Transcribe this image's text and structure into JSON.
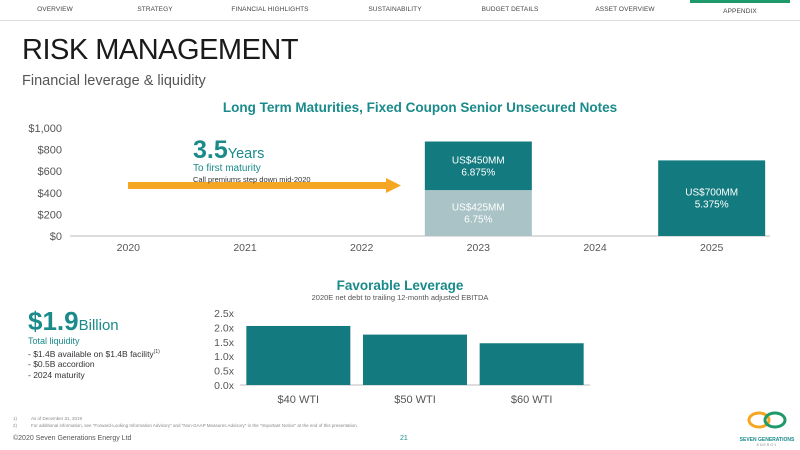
{
  "nav": {
    "items": [
      {
        "label": "OVERVIEW",
        "active": false
      },
      {
        "label": "STRATEGY",
        "active": false
      },
      {
        "label": "FINANCIAL HIGHLIGHTS",
        "active": false
      },
      {
        "label": "SUSTAINABILITY",
        "active": false
      },
      {
        "label": "BUDGET DETAILS",
        "active": false
      },
      {
        "label": "ASSET OVERVIEW",
        "active": false
      },
      {
        "label": "APPENDIX",
        "active": true
      }
    ]
  },
  "page": {
    "title": "RISK MANAGEMENT",
    "subtitle": "Financial leverage & liquidity"
  },
  "maturities": {
    "callout_value": "3.5",
    "callout_unit": "Years",
    "callout_line1": "To first maturity",
    "callout_line2": "Call premiums step down mid-2020"
  },
  "liquidity": {
    "value": "$1.9",
    "unit": "Billion",
    "label": "Total liquidity",
    "bullets": [
      "- $1.4B available on $1.4B facility",
      "- $0.5B accordion",
      "- 2024 maturity"
    ],
    "footnote_ref": "(1)"
  },
  "footnotes": [
    {
      "num": "1)",
      "text": "As of December 31, 2019"
    },
    {
      "num": "2)",
      "text": "For additional information, see \"Forward-Looking Information Advisory\" and \"Non-GAAP Measures Advisory\" in the \"Important Notice\" at the end of this presentation."
    }
  ],
  "footer": {
    "copyright": "©2020 Seven Generations Energy Ltd",
    "page_number": "21",
    "logo_text": "SEVEN GENERATIONS",
    "logo_sub": "ENERGY"
  },
  "colors": {
    "teal_dark": "#137b7f",
    "teal_light": "#a9c3c6",
    "arrow": "#f5a623",
    "accent": "#1a8a8a"
  },
  "chart_data": [
    {
      "type": "bar",
      "stacked": true,
      "title": "Long Term Maturities, Fixed Coupon Senior Unsecured Notes",
      "categories": [
        "2020",
        "2021",
        "2022",
        "2023",
        "2024",
        "2025"
      ],
      "series": [
        {
          "values": [
            0,
            0,
            0,
            425,
            0,
            700
          ],
          "labels": [
            "",
            "",
            "",
            "US$425MM\n6.75%",
            "",
            "US$700MM\n5.375%"
          ],
          "color": "#a9c3c6"
        },
        {
          "values": [
            0,
            0,
            0,
            450,
            0,
            0
          ],
          "labels": [
            "",
            "",
            "",
            "US$450MM\n6.875%",
            "",
            ""
          ],
          "color": "#137b7f"
        }
      ],
      "bar_colors_2025": "#137b7f",
      "ylim": [
        0,
        1000
      ],
      "yticks": [
        "$0",
        "$200",
        "$400",
        "$600",
        "$800",
        "$1,000"
      ],
      "ytick_values": [
        0,
        200,
        400,
        600,
        800,
        1000
      ],
      "grid": false
    },
    {
      "type": "bar",
      "title": "Favorable Leverage",
      "subtitle": "2020E net debt to trailing 12-month adjusted EBITDA",
      "categories": [
        "$40 WTI",
        "$50 WTI",
        "$60 WTI"
      ],
      "values": [
        2.05,
        1.75,
        1.45
      ],
      "ylim": [
        0,
        2.5
      ],
      "yticks": [
        "0.0x",
        "0.5x",
        "1.0x",
        "1.5x",
        "2.0x",
        "2.5x"
      ],
      "ytick_values": [
        0,
        0.5,
        1.0,
        1.5,
        2.0,
        2.5
      ],
      "color": "#137b7f",
      "grid": false
    }
  ]
}
